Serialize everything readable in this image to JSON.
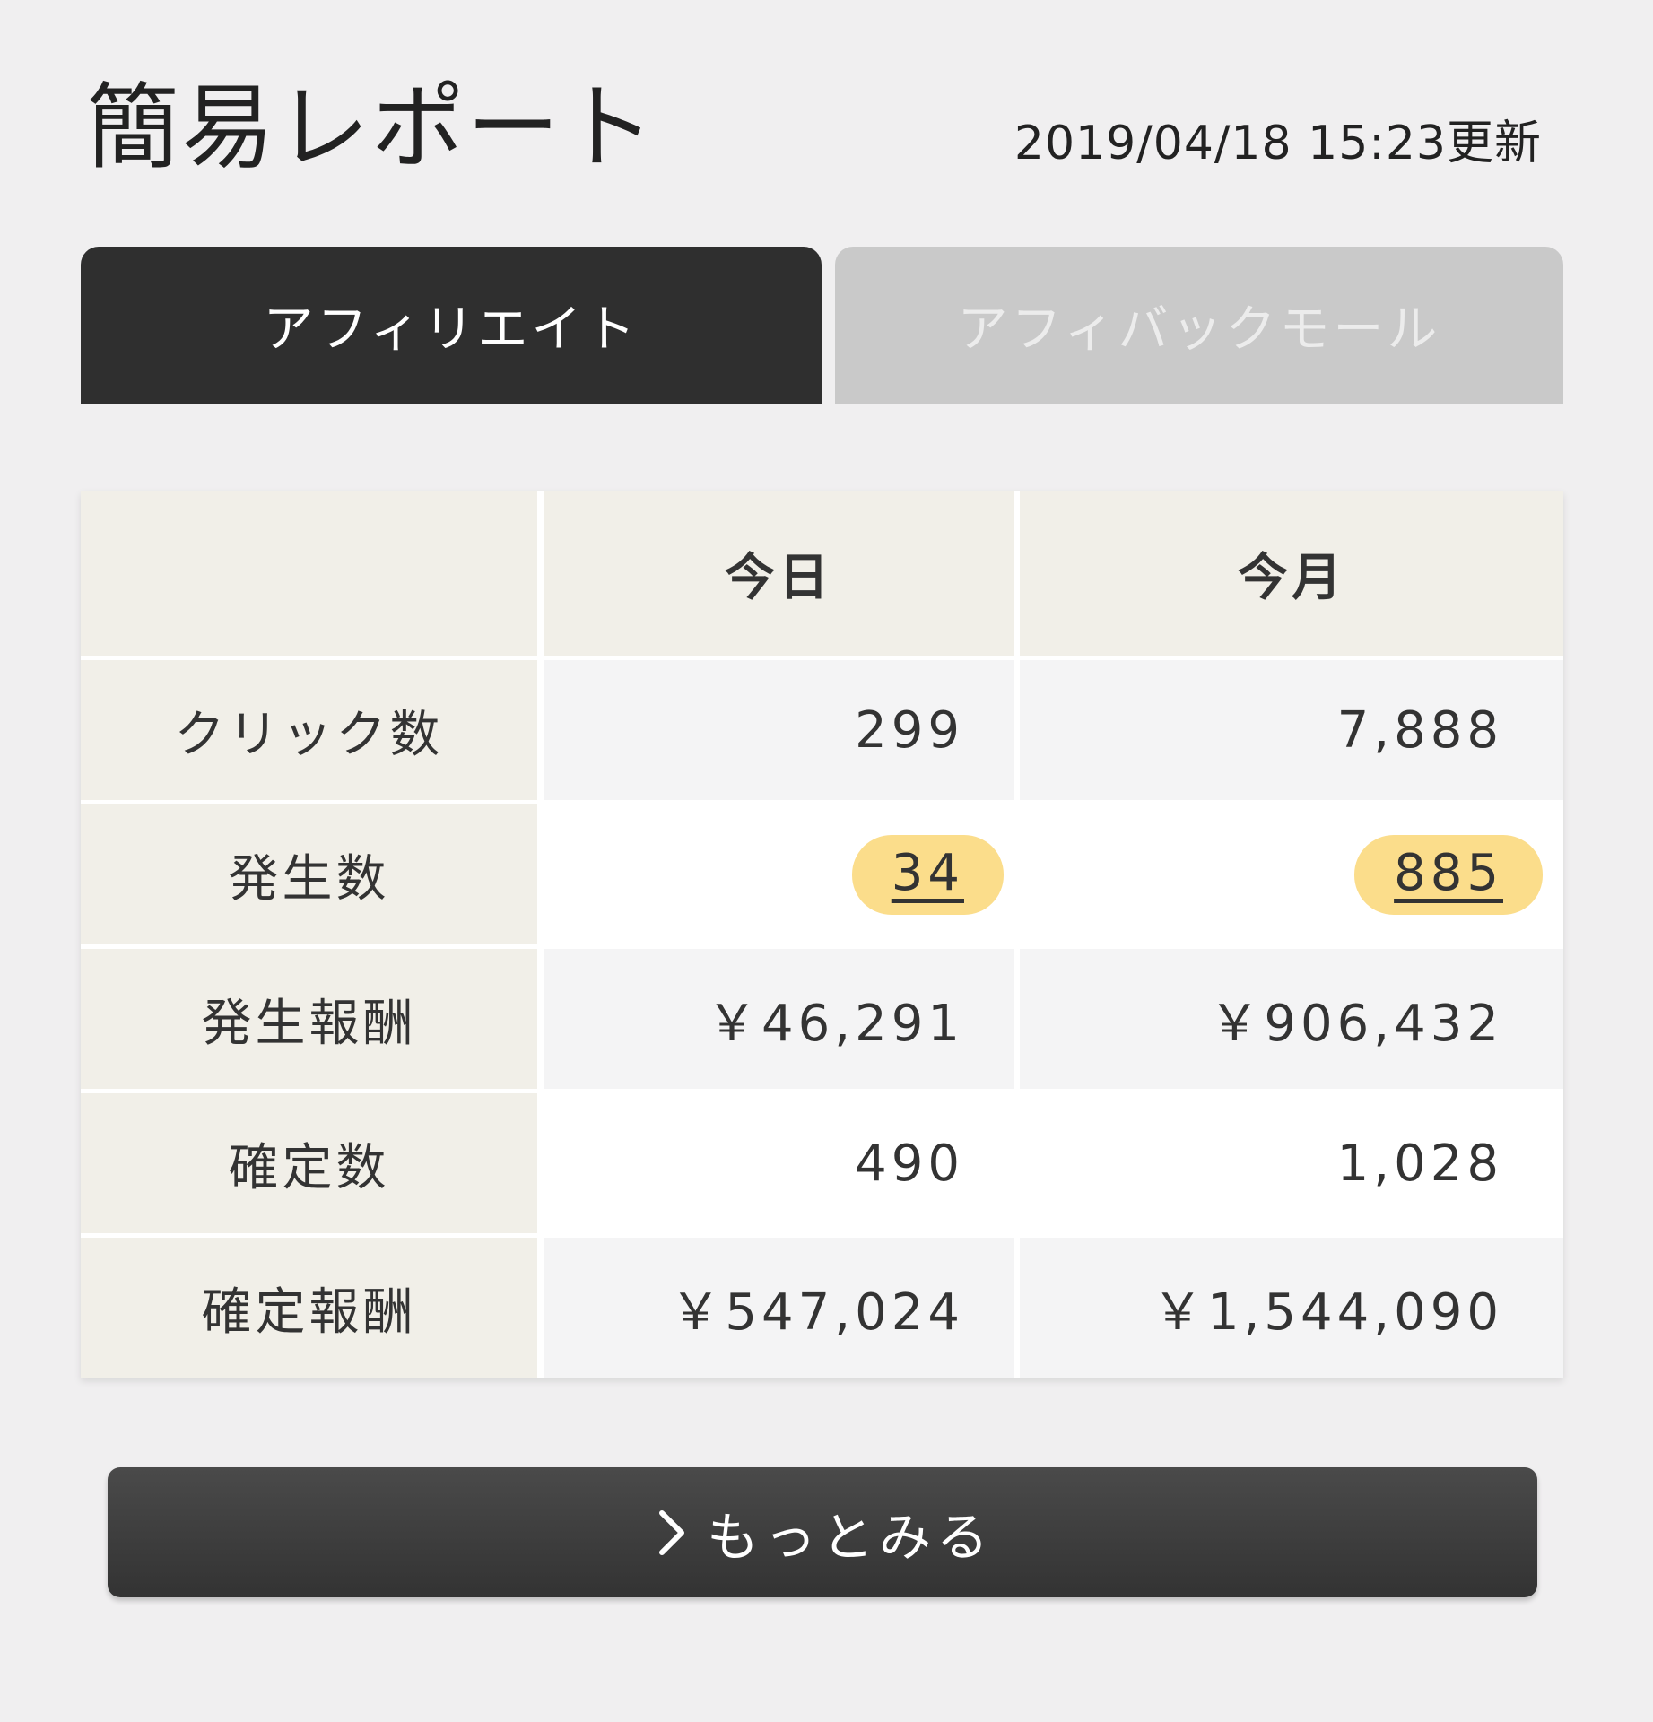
{
  "header": {
    "title": "簡易レポート",
    "updated": "2019/04/18 15:23更新"
  },
  "tabs": [
    {
      "label": "アフィリエイト",
      "active": true
    },
    {
      "label": "アフィバックモール",
      "active": false
    }
  ],
  "table": {
    "columns": [
      "今日",
      "今月"
    ],
    "rows": [
      {
        "label": "クリック数",
        "today": "299",
        "month": "7,888",
        "highlight": false
      },
      {
        "label": "発生数",
        "today": "34",
        "month": "885",
        "highlight": true
      },
      {
        "label": "発生報酬",
        "today": "￥46,291",
        "month": "￥906,432",
        "highlight": false
      },
      {
        "label": "確定数",
        "today": "490",
        "month": "1,028",
        "highlight": false
      },
      {
        "label": "確定報酬",
        "today": "￥547,024",
        "month": "￥1,544,090",
        "highlight": false
      }
    ]
  },
  "more_button": {
    "label": "もっとみる",
    "icon": "chevron-right-icon"
  },
  "colors": {
    "page_bg": "#f0eff0",
    "tab_active": "#2f2f2f",
    "tab_inactive": "#c9c9c9",
    "label_bg": "#f1efe8",
    "highlight": "#fbdd8b",
    "button_bg": "#3a3a3a"
  }
}
